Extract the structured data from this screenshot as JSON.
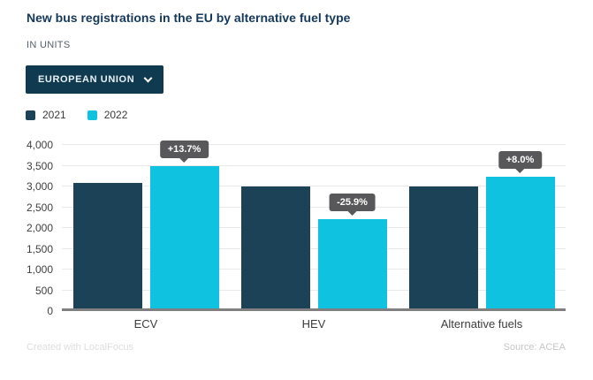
{
  "header": {
    "title": "New bus registrations in the EU by alternative fuel type",
    "subtitle": "IN UNITS"
  },
  "filter": {
    "selected_option": "EUROPEAN UNION",
    "chevron_icon": "chevron-down"
  },
  "legend": [
    {
      "label": "2021",
      "color": "#1c4257"
    },
    {
      "label": "2022",
      "color": "#0fc3e0"
    }
  ],
  "footer": {
    "credit": "Created with LocalFocus",
    "source": "Source: ACEA"
  },
  "colors": {
    "title": "#14395b",
    "dropdown_bg": "#0f3a50",
    "series_2021": "#1c4257",
    "series_2022": "#0fc3e0",
    "tooltip_bg": "#58585a",
    "gridline": "#e9e9e9",
    "axis": "#808080"
  },
  "chart_data": {
    "type": "bar",
    "title": "New bus registrations in the EU by alternative fuel type",
    "xlabel": "",
    "ylabel": "IN UNITS",
    "categories": [
      "ECV",
      "HEV",
      "Alternative fuels"
    ],
    "series": [
      {
        "name": "2021",
        "color": "#1c4257",
        "values": [
          3078,
          3000,
          3005
        ]
      },
      {
        "name": "2022",
        "color": "#0fc3e0",
        "values": [
          3500,
          2223,
          3245
        ]
      }
    ],
    "change_labels": [
      "+13.7%",
      "-25.9%",
      "+8.0%"
    ],
    "yticks": [
      0,
      500,
      1000,
      1500,
      2000,
      2500,
      3000,
      3500,
      4000
    ],
    "ytick_labels": [
      "0",
      "500",
      "1,000",
      "1,500",
      "2,000",
      "2,500",
      "3,000",
      "3,500",
      "4,000"
    ],
    "ylim": [
      0,
      4000
    ],
    "grid": true,
    "legend_position": "top-left"
  }
}
